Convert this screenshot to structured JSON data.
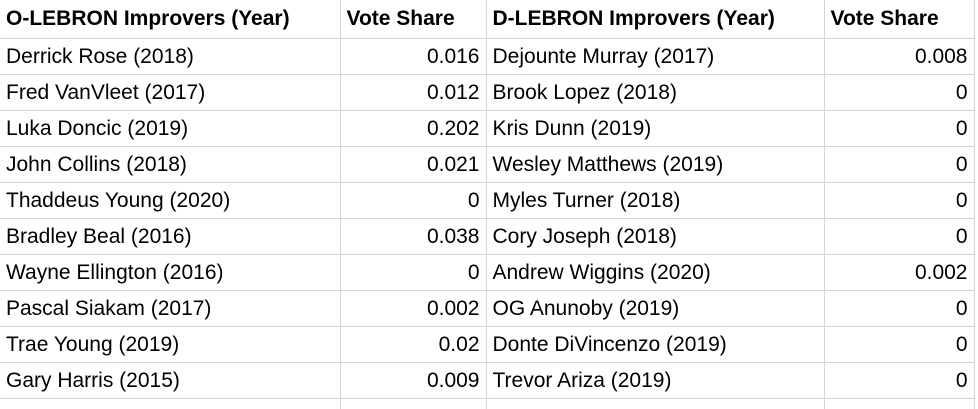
{
  "headers": {
    "o_players": "O-LEBRON Improvers (Year)",
    "o_vote": "Vote Share",
    "d_players": "D-LEBRON Improvers (Year)",
    "d_vote": "Vote Share"
  },
  "rows": [
    {
      "o_player": "Derrick Rose (2018)",
      "o_vote": "0.016",
      "d_player": "Dejounte Murray (2017)",
      "d_vote": "0.008"
    },
    {
      "o_player": "Fred VanVleet (2017)",
      "o_vote": "0.012",
      "d_player": "Brook Lopez (2018)",
      "d_vote": "0"
    },
    {
      "o_player": "Luka Doncic (2019)",
      "o_vote": "0.202",
      "d_player": "Kris Dunn (2019)",
      "d_vote": "0"
    },
    {
      "o_player": "John Collins (2018)",
      "o_vote": "0.021",
      "d_player": "Wesley Matthews (2019)",
      "d_vote": "0"
    },
    {
      "o_player": "Thaddeus Young (2020)",
      "o_vote": "0",
      "d_player": "Myles Turner (2018)",
      "d_vote": "0"
    },
    {
      "o_player": "Bradley Beal (2016)",
      "o_vote": "0.038",
      "d_player": "Cory Joseph (2018)",
      "d_vote": "0"
    },
    {
      "o_player": "Wayne Ellington (2016)",
      "o_vote": "0",
      "d_player": "Andrew Wiggins (2020)",
      "d_vote": "0.002"
    },
    {
      "o_player": "Pascal Siakam (2017)",
      "o_vote": "0.002",
      "d_player": "OG Anunoby (2019)",
      "d_vote": "0"
    },
    {
      "o_player": "Trae Young (2019)",
      "o_vote": "0.02",
      "d_player": "Donte DiVincenzo (2019)",
      "d_vote": "0"
    },
    {
      "o_player": "Gary Harris (2015)",
      "o_vote": "0.009",
      "d_player": "Trevor Ariza (2019)",
      "d_vote": "0"
    }
  ]
}
